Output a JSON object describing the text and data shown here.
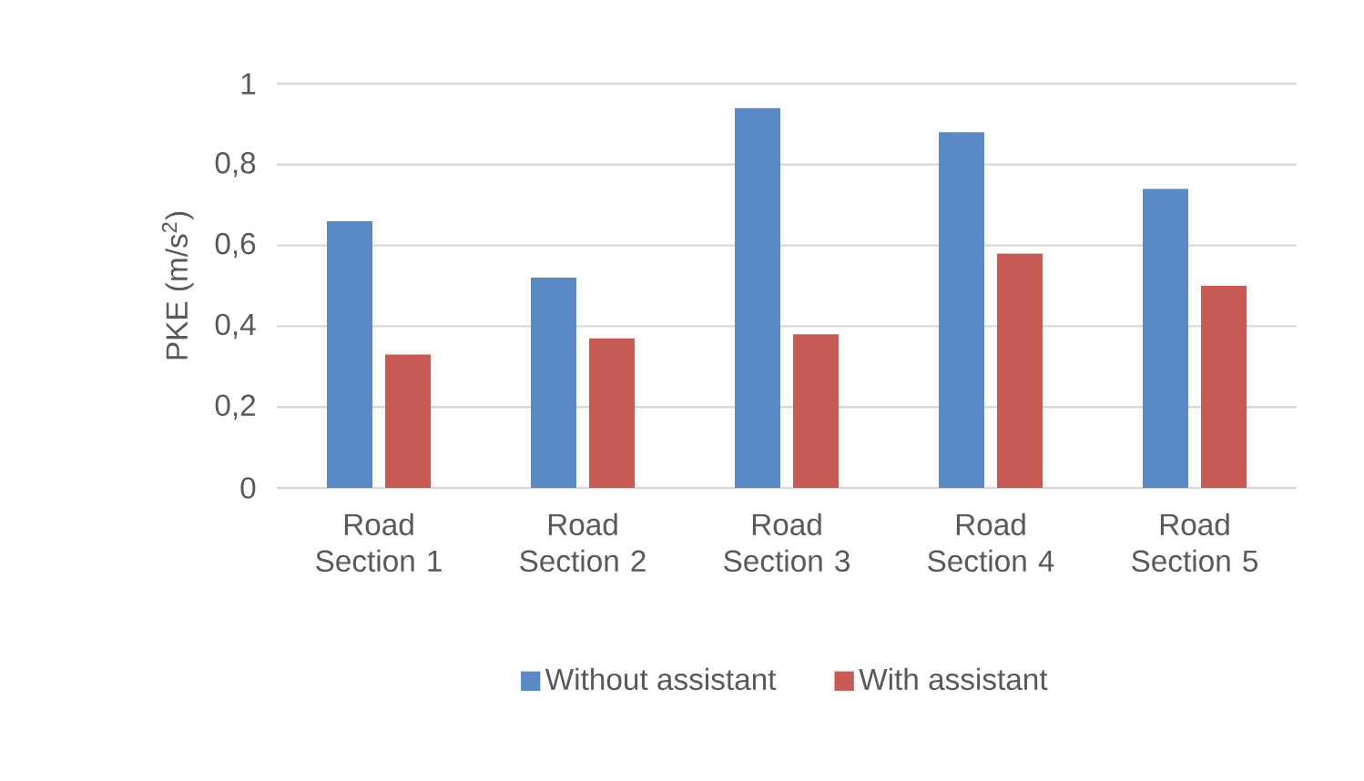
{
  "chart_data": {
    "type": "bar",
    "categories": [
      "Road Section 1",
      "Road Section 2",
      "Road Section 3",
      "Road Section 4",
      "Road Section 5"
    ],
    "ylabel": "PKE (m/s$^{2}$)",
    "series": [
      {
        "name": "Without assistant",
        "color": "#5a8ac6",
        "values": [
          0.66,
          0.52,
          0.94,
          0.88,
          0.74
        ]
      },
      {
        "name": "With assistant",
        "color": "#c75a55",
        "values": [
          0.33,
          0.37,
          0.38,
          0.58,
          0.5
        ]
      }
    ],
    "ylim": [
      0,
      1
    ],
    "yticks": [
      0,
      {
        "value": 0.2,
        "label": "0,2"
      },
      {
        "value": 0.4,
        "label": "0,4"
      },
      {
        "value": 0.6,
        "label": "0,6"
      },
      {
        "value": 0.8,
        "label": "0,8"
      },
      1
    ],
    "grid": "y",
    "legend": "bottom"
  }
}
